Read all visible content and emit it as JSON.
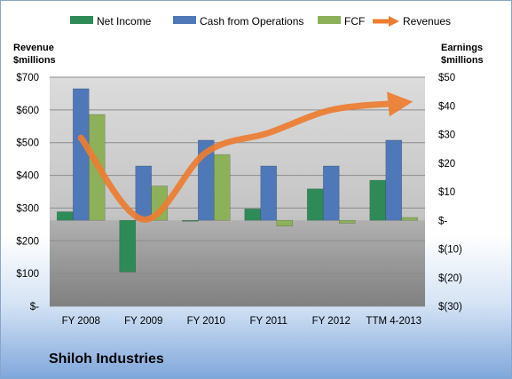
{
  "chart_data": {
    "type": "bar",
    "categories": [
      "FY 2008",
      "FY 2009",
      "FY 2010",
      "FY 2011",
      "FY 2012",
      "TTM 4-2013"
    ],
    "series": [
      {
        "name": "Net Income",
        "axis": "right",
        "color": "#2e8b57",
        "values": [
          3,
          -18,
          0,
          4,
          11,
          14
        ]
      },
      {
        "name": "Cash from Operations",
        "axis": "right",
        "color": "#4f78b8",
        "values": [
          46,
          19,
          28,
          19,
          19,
          28
        ]
      },
      {
        "name": "FCF",
        "axis": "right",
        "color": "#8db05a",
        "values": [
          37,
          12,
          23,
          -2,
          -1,
          1
        ]
      },
      {
        "name": "Revenues",
        "axis": "left",
        "type": "line",
        "color": "#ed7d31",
        "values": [
          515,
          265,
          470,
          530,
          600,
          620
        ]
      }
    ],
    "left_axis": {
      "title_line1": "Revenue",
      "title_line2": "$millions",
      "ylim": [
        0,
        700
      ],
      "ticks": [
        700,
        600,
        500,
        400,
        300,
        200,
        100,
        0
      ],
      "tick_labels": [
        "$700",
        "$600",
        "$500",
        "$400",
        "$300",
        "$200",
        "$100",
        "$-"
      ]
    },
    "right_axis": {
      "title_line1": "Earnings",
      "title_line2": "$millions",
      "ylim": [
        -30,
        50
      ],
      "ticks": [
        50,
        40,
        30,
        20,
        10,
        0,
        -10,
        -20,
        -30
      ],
      "tick_labels": [
        "$50",
        "$40",
        "$30",
        "$20",
        "$10",
        "$-",
        "$(10)",
        "$(20)",
        "$(30)"
      ]
    },
    "grid": true,
    "legend_position": "top"
  },
  "company_name": "Shiloh Industries"
}
